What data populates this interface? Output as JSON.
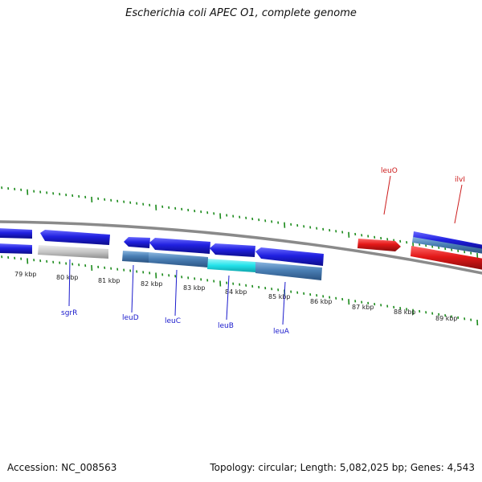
{
  "header": {
    "title": "Escherichia coli APEC O1, complete genome"
  },
  "footer": {
    "accession": "Accession: NC_008563",
    "summary": "Topology: circular; Length: 5,082,025 bp; Genes: 4,543"
  },
  "colors": {
    "gene_blue": "#1f1fdc",
    "gene_steel": "#4a7fb5",
    "gene_gray": "#c4c4c4",
    "gene_cyan": "#1fe3ea",
    "gene_red": "#e01818",
    "label_blue": "#1a1acc",
    "label_red": "#cc1a1a",
    "tick_green": "#1a8a1a",
    "backbone_gray": "#808080"
  },
  "scale": {
    "ticks": [
      "79 kbp",
      "80 kbp",
      "81 kbp",
      "82 kbp",
      "83 kbp",
      "84 kbp",
      "85 kbp",
      "86 kbp",
      "87 kbp",
      "88 kbp",
      "89 kbp"
    ]
  },
  "gene_labels": [
    {
      "name": "sgrR",
      "color": "blue"
    },
    {
      "name": "leuD",
      "color": "blue"
    },
    {
      "name": "leuC",
      "color": "blue"
    },
    {
      "name": "leuB",
      "color": "blue"
    },
    {
      "name": "leuA",
      "color": "blue"
    },
    {
      "name": "leuO",
      "color": "red"
    },
    {
      "name": "ilvI",
      "color": "red"
    }
  ]
}
